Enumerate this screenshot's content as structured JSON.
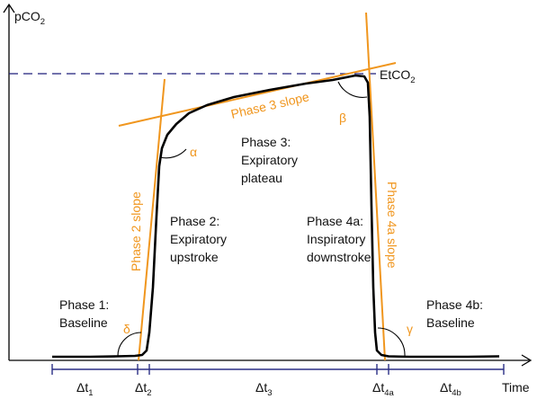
{
  "colors": {
    "curve": "#000000",
    "slope": "#f0961e",
    "reference": "#1f1f7a",
    "interval": "#2b2f86",
    "axis": "#000000"
  },
  "axes": {
    "y_label": "pCO",
    "y_label_sub": "2",
    "x_label": "Time"
  },
  "etco2": {
    "label": "EtCO",
    "sub": "2"
  },
  "phases": {
    "p1": [
      "Phase 1:",
      "Baseline"
    ],
    "p2": [
      "Phase 2:",
      "Expiratory",
      "upstroke"
    ],
    "p3": [
      "Phase 3:",
      "Expiratory",
      "plateau"
    ],
    "p4a": [
      "Phase 4a:",
      "Inspiratory",
      "downstroke"
    ],
    "p4b": [
      "Phase 4b:",
      "Baseline"
    ]
  },
  "slopes": {
    "phase2": "Phase 2 slope",
    "phase3": "Phase 3 slope",
    "phase4a": "Phase 4a slope"
  },
  "angles": {
    "alpha": "α",
    "beta": "β",
    "gamma": "γ",
    "delta": "δ"
  },
  "intervals": [
    {
      "name": "Δt",
      "sub": "1"
    },
    {
      "name": "Δt",
      "sub": "2"
    },
    {
      "name": "Δt",
      "sub": "3"
    },
    {
      "name": "Δt",
      "sub": "4a"
    },
    {
      "name": "Δt",
      "sub": "4b"
    }
  ]
}
